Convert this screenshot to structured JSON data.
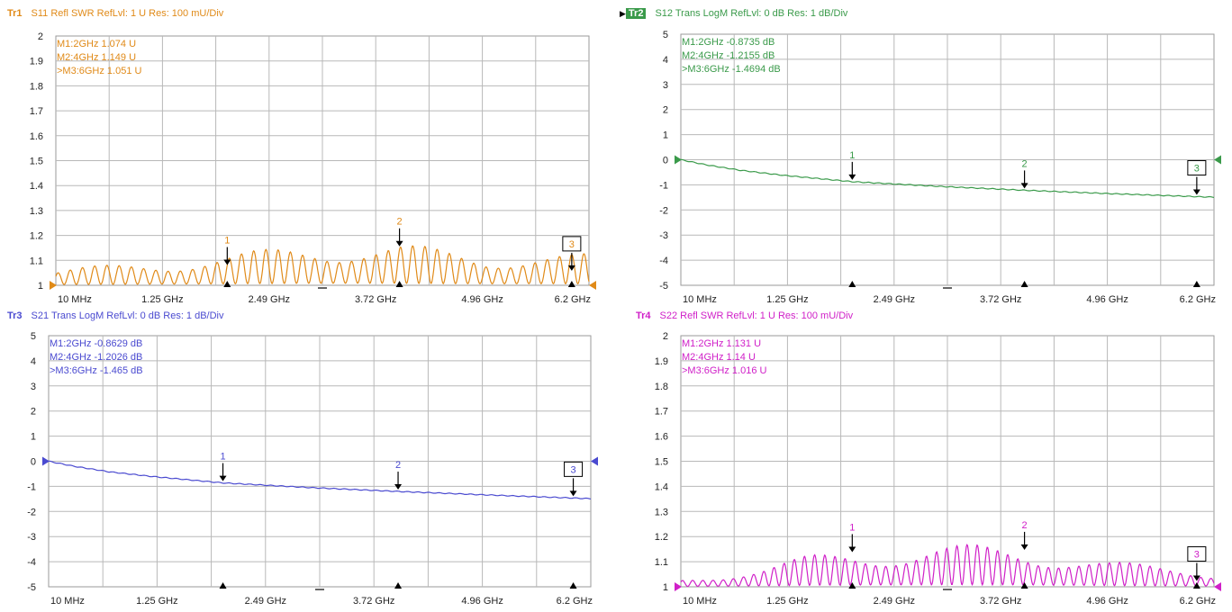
{
  "traces": [
    {
      "id": "Tr1",
      "active": false,
      "header": "S11 Refl SWR RefLvl: 1  U Res: 100 mU/Div",
      "color": "#e08a18",
      "markers": [
        "M1:2GHz  1.074  U",
        "M2:4GHz  1.149  U",
        ">M3:6GHz  1.051  U"
      ]
    },
    {
      "id": "Tr2",
      "active": true,
      "header": "S12 Trans LogM RefLvl: 0  dB Res: 1  dB/Div",
      "color": "#3a9a4a",
      "markers": [
        "M1:2GHz  -0.8735  dB",
        "M2:4GHz  -1.2155  dB",
        ">M3:6GHz  -1.4694  dB"
      ]
    },
    {
      "id": "Tr3",
      "active": false,
      "header": "S21 Trans LogM RefLvl: 0  dB Res: 1  dB/Div",
      "color": "#4a4ad0",
      "markers": [
        "M1:2GHz  -0.8629  dB",
        "M2:4GHz  -1.2026  dB",
        ">M3:6GHz  -1.465  dB"
      ]
    },
    {
      "id": "Tr4",
      "active": false,
      "header": "S22 Refl SWR RefLvl: 1  U Res: 100 mU/Div",
      "color": "#d020c8",
      "markers": [
        "M1:2GHz  1.131  U",
        "M2:4GHz  1.14  U",
        ">M3:6GHz  1.016  U"
      ]
    }
  ],
  "chart_data": [
    {
      "type": "line",
      "trace": "Tr1",
      "quantity": "swr",
      "xlim": [
        0.01,
        6.2
      ],
      "ylim": [
        1,
        2
      ],
      "x_ticks": [
        "10 MHz",
        "1.25 GHz",
        "2.49 GHz",
        "3.72 GHz",
        "4.96 GHz",
        "6.2 GHz"
      ],
      "y_ticks": [
        "2",
        "1.9",
        "1.8",
        "1.7",
        "1.6",
        "1.5",
        "1.4",
        "1.3",
        "1.2",
        "1.1",
        "1"
      ],
      "markers": [
        {
          "label": "1",
          "x": 2,
          "y": 1.074
        },
        {
          "label": "2",
          "x": 4,
          "y": 1.149
        },
        {
          "label": "3",
          "x": 6,
          "y": 1.051
        }
      ],
      "envelope": [
        [
          0.01,
          1.06
        ],
        [
          1.0,
          1.09
        ],
        [
          2.0,
          1.12
        ],
        [
          2.5,
          1.14
        ],
        [
          3.0,
          1.16
        ],
        [
          3.5,
          1.17
        ],
        [
          4.0,
          1.16
        ],
        [
          4.5,
          1.14
        ],
        [
          5.0,
          1.12
        ],
        [
          5.5,
          1.13
        ],
        [
          6.2,
          1.12
        ]
      ]
    },
    {
      "type": "line",
      "trace": "Tr2",
      "quantity": "logmag",
      "xlim": [
        0.01,
        6.2
      ],
      "ylim": [
        -5,
        5
      ],
      "x_ticks": [
        "10 MHz",
        "1.25 GHz",
        "2.49 GHz",
        "3.72 GHz",
        "4.96 GHz",
        "6.2 GHz"
      ],
      "y_ticks": [
        "5",
        "4",
        "3",
        "2",
        "1",
        "0",
        "-1",
        "-2",
        "-3",
        "-4",
        "-5"
      ],
      "markers": [
        {
          "label": "1",
          "x": 2,
          "y": -0.8735
        },
        {
          "label": "2",
          "x": 4,
          "y": -1.2155
        },
        {
          "label": "3",
          "x": 6,
          "y": -1.4694
        }
      ],
      "points": [
        [
          0.01,
          0.0
        ],
        [
          0.3,
          -0.2
        ],
        [
          0.7,
          -0.42
        ],
        [
          1.2,
          -0.62
        ],
        [
          2.0,
          -0.8735
        ],
        [
          3.0,
          -1.06
        ],
        [
          4.0,
          -1.2155
        ],
        [
          5.0,
          -1.35
        ],
        [
          6.0,
          -1.4694
        ],
        [
          6.2,
          -1.49
        ]
      ]
    },
    {
      "type": "line",
      "trace": "Tr3",
      "quantity": "logmag",
      "xlim": [
        0.01,
        6.2
      ],
      "ylim": [
        -5,
        5
      ],
      "x_ticks": [
        "10 MHz",
        "1.25 GHz",
        "2.49 GHz",
        "3.72 GHz",
        "4.96 GHz",
        "6.2 GHz"
      ],
      "y_ticks": [
        "5",
        "4",
        "3",
        "2",
        "1",
        "0",
        "-1",
        "-2",
        "-3",
        "-4",
        "-5"
      ],
      "markers": [
        {
          "label": "1",
          "x": 2,
          "y": -0.8629
        },
        {
          "label": "2",
          "x": 4,
          "y": -1.2026
        },
        {
          "label": "3",
          "x": 6,
          "y": -1.465
        }
      ],
      "points": [
        [
          0.01,
          0.0
        ],
        [
          0.3,
          -0.2
        ],
        [
          0.7,
          -0.42
        ],
        [
          1.2,
          -0.61
        ],
        [
          2.0,
          -0.8629
        ],
        [
          3.0,
          -1.05
        ],
        [
          4.0,
          -1.2026
        ],
        [
          5.0,
          -1.34
        ],
        [
          6.0,
          -1.465
        ],
        [
          6.2,
          -1.49
        ]
      ]
    },
    {
      "type": "line",
      "trace": "Tr4",
      "quantity": "swr",
      "xlim": [
        0.01,
        6.2
      ],
      "ylim": [
        1,
        2
      ],
      "x_ticks": [
        "10 MHz",
        "1.25 GHz",
        "2.49 GHz",
        "3.72 GHz",
        "4.96 GHz",
        "6.2 GHz"
      ],
      "y_ticks": [
        "2",
        "1.9",
        "1.8",
        "1.7",
        "1.6",
        "1.5",
        "1.4",
        "1.3",
        "1.2",
        "1.1",
        "1"
      ],
      "markers": [
        {
          "label": "1",
          "x": 2,
          "y": 1.131
        },
        {
          "label": "2",
          "x": 4,
          "y": 1.14
        },
        {
          "label": "3",
          "x": 6,
          "y": 1.016
        }
      ],
      "envelope": [
        [
          0.01,
          1.03
        ],
        [
          0.5,
          1.05
        ],
        [
          1.0,
          1.08
        ],
        [
          1.5,
          1.12
        ],
        [
          2.0,
          1.14
        ],
        [
          2.5,
          1.15
        ],
        [
          3.0,
          1.16
        ],
        [
          3.5,
          1.16
        ],
        [
          4.0,
          1.15
        ],
        [
          4.5,
          1.13
        ],
        [
          5.0,
          1.1
        ],
        [
          5.5,
          1.08
        ],
        [
          6.2,
          1.06
        ]
      ]
    }
  ]
}
